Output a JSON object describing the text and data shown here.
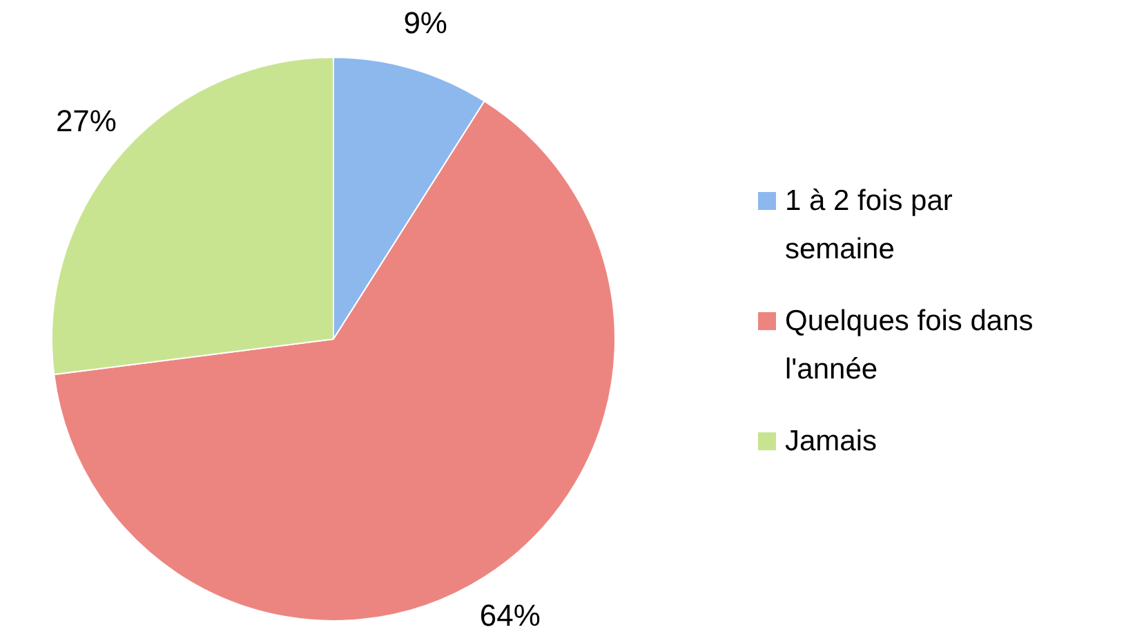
{
  "chart_data": {
    "type": "pie",
    "categories": [
      "1 à 2 fois par semaine",
      "Quelques fois dans l'année",
      "Jamais"
    ],
    "values": [
      9,
      64,
      27
    ],
    "colors": [
      "#8db8ee",
      "#ec8580",
      "#c8e491"
    ],
    "value_labels": [
      "9%",
      "64%",
      "27%"
    ],
    "legend": "right"
  }
}
